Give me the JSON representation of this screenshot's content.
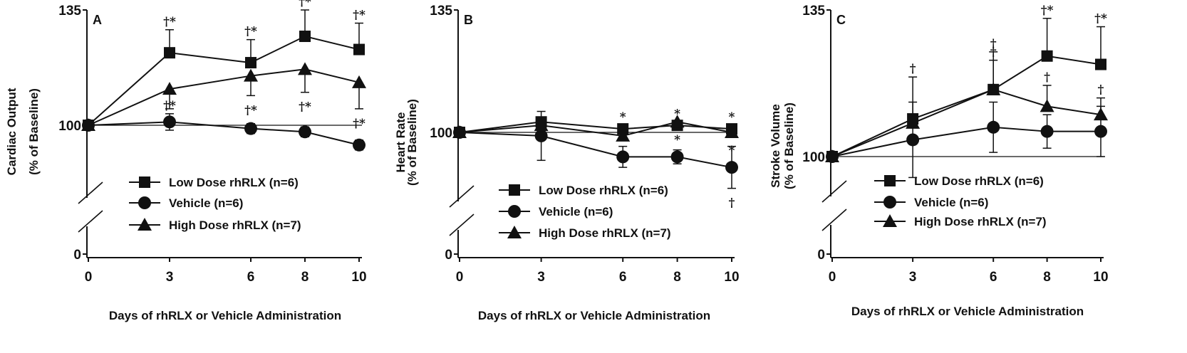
{
  "chart_data": [
    {
      "type": "line",
      "panel_label": "A",
      "ylabel": "Cardiac Output",
      "ylabel2": "(% of Baseline)",
      "xlabel": "Days of rhRLX or Vehicle Administration",
      "x": [
        0,
        3,
        6,
        8,
        10
      ],
      "x_ticks": [
        "0",
        "3",
        "6",
        "8",
        "10"
      ],
      "y_ticks": [
        "0",
        "100",
        "135"
      ],
      "y_axis_break": true,
      "xlim": [
        0,
        10
      ],
      "ylim": [
        0,
        135
      ],
      "legend": "lower-center",
      "series": [
        {
          "name": "Low Dose rhRLX (n=6)",
          "marker": "square",
          "values": [
            100,
            122,
            119,
            127,
            123
          ],
          "errors": [
            0,
            7,
            7,
            8,
            8
          ],
          "error_dir": "up",
          "sig": [
            "",
            "†*",
            "†*",
            "†*",
            "†*"
          ]
        },
        {
          "name": "Vehicle (n=6)",
          "marker": "circle",
          "values": [
            100,
            101,
            99,
            98,
            94
          ],
          "errors": [
            0,
            2.5,
            1.5,
            1.5,
            1.5
          ],
          "error_dir": "both",
          "sig": [
            "",
            "†*",
            "",
            "",
            ""
          ]
        },
        {
          "name": "High Dose rhRLX (n=7)",
          "marker": "triangle",
          "values": [
            100,
            111,
            115,
            117,
            113
          ],
          "errors": [
            0,
            6,
            6,
            7,
            8
          ],
          "error_dir": "down",
          "sig": [
            "",
            "",
            "†*",
            "†*",
            "†*"
          ]
        }
      ]
    },
    {
      "type": "line",
      "panel_label": "B",
      "ylabel": "Heart Rate",
      "ylabel2": "(% of Baseline)",
      "xlabel": "Days of rhRLX or Vehicle Administration",
      "x": [
        0,
        3,
        6,
        8,
        10
      ],
      "x_ticks": [
        "0",
        "3",
        "6",
        "8",
        "10"
      ],
      "y_ticks": [
        "0",
        "100",
        "135"
      ],
      "y_axis_break": true,
      "xlim": [
        0,
        10
      ],
      "ylim": [
        0,
        135
      ],
      "legend": "lower-center",
      "series": [
        {
          "name": "Low Dose rhRLX (n=6)",
          "marker": "square",
          "values": [
            100,
            103,
            101,
            102,
            101
          ],
          "errors": [
            0,
            0,
            1,
            1,
            1
          ],
          "error_dir": "up",
          "sig": [
            "",
            "",
            "*",
            "*",
            "*"
          ]
        },
        {
          "name": "Vehicle (n=6)",
          "marker": "circle",
          "values": [
            100,
            99,
            93,
            93,
            90
          ],
          "errors": [
            0,
            7,
            3,
            2,
            6
          ],
          "error_dir": "both",
          "sig": [
            "",
            "",
            "",
            "",
            "†"
          ]
        },
        {
          "name": "High Dose rhRLX (n=7)",
          "marker": "triangle",
          "values": [
            100,
            102,
            99,
            103,
            100
          ],
          "errors": [
            0,
            0,
            1,
            1,
            1
          ],
          "error_dir": "down",
          "sig": [
            "",
            "",
            "",
            "*",
            "*"
          ]
        }
      ]
    },
    {
      "type": "line",
      "panel_label": "C",
      "ylabel": "Stroke Volume",
      "ylabel2": "(% of Baseline)",
      "xlabel": "Days of rhRLX or Vehicle Administration",
      "x": [
        0,
        3,
        6,
        8,
        10
      ],
      "x_ticks": [
        "0",
        "3",
        "6",
        "8",
        "10"
      ],
      "y_ticks": [
        "0",
        "100",
        "135"
      ],
      "y_axis_break": true,
      "xlim": [
        0,
        10
      ],
      "ylim": [
        0,
        135
      ],
      "legend": "lower-center",
      "series": [
        {
          "name": "Low Dose rhRLX (n=6)",
          "marker": "square",
          "values": [
            100,
            109,
            116,
            124,
            122
          ],
          "errors": [
            0,
            10,
            9,
            9,
            9
          ],
          "error_dir": "up",
          "sig": [
            "",
            "†",
            "†",
            "†*",
            "†*"
          ]
        },
        {
          "name": "Vehicle (n=6)",
          "marker": "circle",
          "values": [
            100,
            104,
            107,
            106,
            106
          ],
          "errors": [
            0,
            9,
            6,
            4,
            6
          ],
          "error_dir": "both",
          "sig": [
            "",
            "",
            "",
            "",
            ""
          ]
        },
        {
          "name": "High Dose rhRLX (n=7)",
          "marker": "triangle",
          "values": [
            100,
            108,
            116,
            112,
            110
          ],
          "errors": [
            0,
            0,
            7,
            5,
            4
          ],
          "error_dir": "up",
          "sig": [
            "",
            "",
            "†",
            "†",
            "†"
          ]
        }
      ]
    }
  ]
}
